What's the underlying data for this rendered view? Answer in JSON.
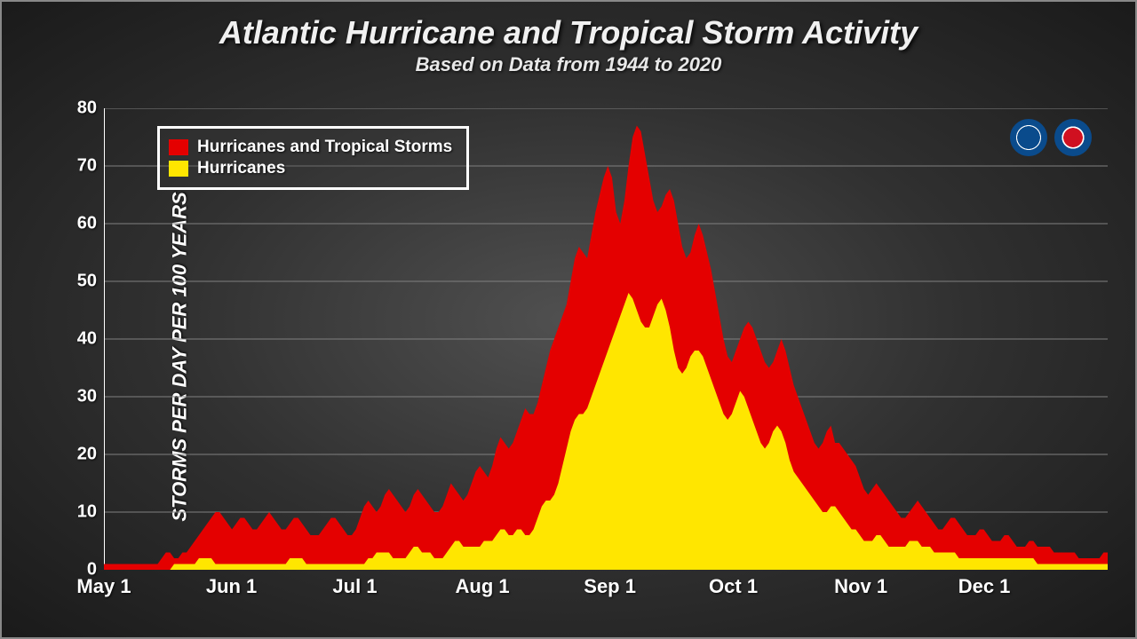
{
  "title": "Atlantic Hurricane and Tropical Storm Activity",
  "subtitle": "Based on Data from 1944 to 2020",
  "y_axis_label": "STORMS PER DAY PER 100 YEARS",
  "chart": {
    "type": "area",
    "background_color": "transparent",
    "grid_color": "#808080",
    "axis_color": "#ffffff",
    "ylim": [
      0,
      80
    ],
    "ytick_step": 10,
    "y_ticks": [
      0,
      10,
      20,
      30,
      40,
      50,
      60,
      70,
      80
    ],
    "x_ticks": [
      {
        "pos": 0,
        "label": "May 1"
      },
      {
        "pos": 31,
        "label": "Jun 1"
      },
      {
        "pos": 61,
        "label": "Jul 1"
      },
      {
        "pos": 92,
        "label": "Aug 1"
      },
      {
        "pos": 123,
        "label": "Sep 1"
      },
      {
        "pos": 153,
        "label": "Oct 1"
      },
      {
        "pos": 184,
        "label": "Nov 1"
      },
      {
        "pos": 214,
        "label": "Dec 1"
      }
    ],
    "x_domain": [
      0,
      244
    ],
    "series": [
      {
        "name": "Hurricanes and Tropical Storms",
        "color": "#e40000",
        "values": [
          1,
          1,
          1,
          1,
          1,
          1,
          1,
          1,
          1,
          1,
          1,
          1,
          1,
          1,
          2,
          3,
          3,
          2,
          2,
          3,
          3,
          4,
          5,
          6,
          7,
          8,
          9,
          10,
          10,
          9,
          8,
          7,
          8,
          9,
          9,
          8,
          7,
          7,
          8,
          9,
          10,
          9,
          8,
          7,
          7,
          8,
          9,
          9,
          8,
          7,
          6,
          6,
          6,
          7,
          8,
          9,
          9,
          8,
          7,
          6,
          6,
          7,
          9,
          11,
          12,
          11,
          10,
          11,
          13,
          14,
          13,
          12,
          11,
          10,
          11,
          13,
          14,
          13,
          12,
          11,
          10,
          10,
          11,
          13,
          15,
          14,
          13,
          12,
          13,
          15,
          17,
          18,
          17,
          16,
          18,
          21,
          23,
          22,
          21,
          22,
          24,
          26,
          28,
          27,
          27,
          29,
          32,
          35,
          38,
          40,
          42,
          44,
          46,
          50,
          54,
          56,
          55,
          54,
          58,
          62,
          65,
          68,
          70,
          68,
          62,
          60,
          64,
          70,
          75,
          77,
          76,
          72,
          68,
          64,
          62,
          63,
          65,
          66,
          64,
          60,
          56,
          54,
          55,
          58,
          60,
          58,
          55,
          52,
          48,
          44,
          40,
          37,
          36,
          38,
          40,
          42,
          43,
          42,
          40,
          38,
          36,
          35,
          36,
          38,
          40,
          38,
          35,
          32,
          30,
          28,
          26,
          24,
          22,
          21,
          22,
          24,
          25,
          22,
          22,
          21,
          20,
          19,
          18,
          16,
          14,
          13,
          14,
          15,
          14,
          13,
          12,
          11,
          10,
          9,
          9,
          10,
          11,
          12,
          11,
          10,
          9,
          8,
          7,
          7,
          8,
          9,
          9,
          8,
          7,
          6,
          6,
          6,
          7,
          7,
          6,
          5,
          5,
          5,
          6,
          6,
          5,
          4,
          4,
          4,
          5,
          5,
          4,
          4,
          4,
          4,
          3,
          3,
          3,
          3,
          3,
          3,
          2,
          2,
          2,
          2,
          2,
          2,
          3,
          3
        ]
      },
      {
        "name": "Hurricanes",
        "color": "#ffe600",
        "values": [
          0,
          0,
          0,
          0,
          0,
          0,
          0,
          0,
          0,
          0,
          0,
          0,
          0,
          0,
          0,
          0,
          0,
          1,
          1,
          1,
          1,
          1,
          1,
          2,
          2,
          2,
          2,
          1,
          1,
          1,
          1,
          1,
          1,
          1,
          1,
          1,
          1,
          1,
          1,
          1,
          1,
          1,
          1,
          1,
          1,
          2,
          2,
          2,
          2,
          1,
          1,
          1,
          1,
          1,
          1,
          1,
          1,
          1,
          1,
          1,
          1,
          1,
          1,
          1,
          2,
          2,
          3,
          3,
          3,
          3,
          2,
          2,
          2,
          2,
          3,
          4,
          4,
          3,
          3,
          3,
          2,
          2,
          2,
          3,
          4,
          5,
          5,
          4,
          4,
          4,
          4,
          4,
          5,
          5,
          5,
          6,
          7,
          7,
          6,
          6,
          7,
          7,
          6,
          6,
          7,
          9,
          11,
          12,
          12,
          13,
          15,
          18,
          21,
          24,
          26,
          27,
          27,
          28,
          30,
          32,
          34,
          36,
          38,
          40,
          42,
          44,
          46,
          48,
          47,
          45,
          43,
          42,
          42,
          44,
          46,
          47,
          45,
          42,
          38,
          35,
          34,
          35,
          37,
          38,
          38,
          37,
          35,
          33,
          31,
          29,
          27,
          26,
          27,
          29,
          31,
          30,
          28,
          26,
          24,
          22,
          21,
          22,
          24,
          25,
          24,
          22,
          19,
          17,
          16,
          15,
          14,
          13,
          12,
          11,
          10,
          10,
          11,
          11,
          10,
          9,
          8,
          7,
          7,
          6,
          5,
          5,
          5,
          6,
          6,
          5,
          4,
          4,
          4,
          4,
          4,
          5,
          5,
          5,
          4,
          4,
          4,
          3,
          3,
          3,
          3,
          3,
          3,
          2,
          2,
          2,
          2,
          2,
          2,
          2,
          2,
          2,
          2,
          2,
          2,
          2,
          2,
          2,
          2,
          2,
          2,
          2,
          1,
          1,
          1,
          1,
          1,
          1,
          1,
          1,
          1,
          1,
          1,
          1,
          1,
          1,
          1,
          1,
          1,
          1
        ]
      }
    ]
  },
  "legend": {
    "items": [
      {
        "label": "Hurricanes and Tropical Storms",
        "color": "#e40000"
      },
      {
        "label": "Hurricanes",
        "color": "#ffe600"
      }
    ]
  },
  "logos": {
    "noaa_label": "NOAA",
    "nws_label": "NWS"
  }
}
